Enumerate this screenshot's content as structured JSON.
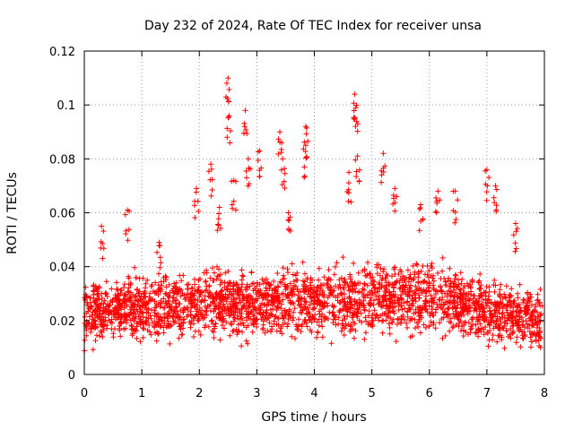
{
  "chart_data": {
    "type": "scatter",
    "title": "Day 232 of 2024, Rate Of TEC Index for receiver unsa",
    "xlabel": "GPS time / hours",
    "ylabel": "ROTI / TECUs",
    "xlim": [
      0,
      8
    ],
    "ylim": [
      0,
      0.12
    ],
    "xticks": [
      0,
      1,
      2,
      3,
      4,
      5,
      6,
      7,
      8
    ],
    "xtick_labels": [
      "0",
      "1",
      "2",
      "3",
      "4",
      "5",
      "6",
      "7",
      "8"
    ],
    "yticks": [
      0,
      0.02,
      0.04,
      0.06,
      0.08,
      0.1,
      0.12
    ],
    "ytick_labels": [
      "0",
      "0.02",
      "0.04",
      "0.06",
      "0.08",
      "0.1",
      "0.12"
    ],
    "grid": true,
    "marker": "+",
    "color": "#ff0000",
    "series": [
      {
        "name": "ROTI",
        "profile": [
          {
            "x": 0.0,
            "low": 0.007,
            "high": 0.036
          },
          {
            "x": 0.5,
            "low": 0.008,
            "high": 0.04
          },
          {
            "x": 1.0,
            "low": 0.008,
            "high": 0.042
          },
          {
            "x": 1.5,
            "low": 0.009,
            "high": 0.042
          },
          {
            "x": 2.0,
            "low": 0.01,
            "high": 0.043
          },
          {
            "x": 2.5,
            "low": 0.009,
            "high": 0.044
          },
          {
            "x": 3.0,
            "low": 0.01,
            "high": 0.042
          },
          {
            "x": 3.5,
            "low": 0.01,
            "high": 0.044
          },
          {
            "x": 4.0,
            "low": 0.011,
            "high": 0.045
          },
          {
            "x": 4.5,
            "low": 0.01,
            "high": 0.045
          },
          {
            "x": 5.0,
            "low": 0.01,
            "high": 0.045
          },
          {
            "x": 5.5,
            "low": 0.011,
            "high": 0.046
          },
          {
            "x": 6.0,
            "low": 0.01,
            "high": 0.046
          },
          {
            "x": 6.5,
            "low": 0.01,
            "high": 0.043
          },
          {
            "x": 7.0,
            "low": 0.008,
            "high": 0.04
          },
          {
            "x": 7.5,
            "low": 0.007,
            "high": 0.036
          },
          {
            "x": 7.95,
            "low": 0.005,
            "high": 0.034
          }
        ],
        "clusters": [
          {
            "x": 0.3,
            "y": 0.055
          },
          {
            "x": 0.75,
            "y": 0.061
          },
          {
            "x": 1.3,
            "y": 0.049
          },
          {
            "x": 1.95,
            "y": 0.069
          },
          {
            "x": 2.2,
            "y": 0.078
          },
          {
            "x": 2.35,
            "y": 0.062
          },
          {
            "x": 2.5,
            "y": 0.11
          },
          {
            "x": 2.52,
            "y": 0.096
          },
          {
            "x": 2.6,
            "y": 0.072
          },
          {
            "x": 2.8,
            "y": 0.098
          },
          {
            "x": 2.85,
            "y": 0.08
          },
          {
            "x": 3.05,
            "y": 0.083
          },
          {
            "x": 3.4,
            "y": 0.09
          },
          {
            "x": 3.45,
            "y": 0.08
          },
          {
            "x": 3.55,
            "y": 0.06
          },
          {
            "x": 3.85,
            "y": 0.092
          },
          {
            "x": 3.85,
            "y": 0.085
          },
          {
            "x": 4.6,
            "y": 0.075
          },
          {
            "x": 4.7,
            "y": 0.104
          },
          {
            "x": 4.72,
            "y": 0.099
          },
          {
            "x": 4.75,
            "y": 0.081
          },
          {
            "x": 5.2,
            "y": 0.082
          },
          {
            "x": 5.4,
            "y": 0.069
          },
          {
            "x": 5.85,
            "y": 0.063
          },
          {
            "x": 6.15,
            "y": 0.068
          },
          {
            "x": 6.45,
            "y": 0.068
          },
          {
            "x": 7.0,
            "y": 0.076
          },
          {
            "x": 7.15,
            "y": 0.07
          },
          {
            "x": 7.5,
            "y": 0.056
          }
        ]
      }
    ]
  }
}
